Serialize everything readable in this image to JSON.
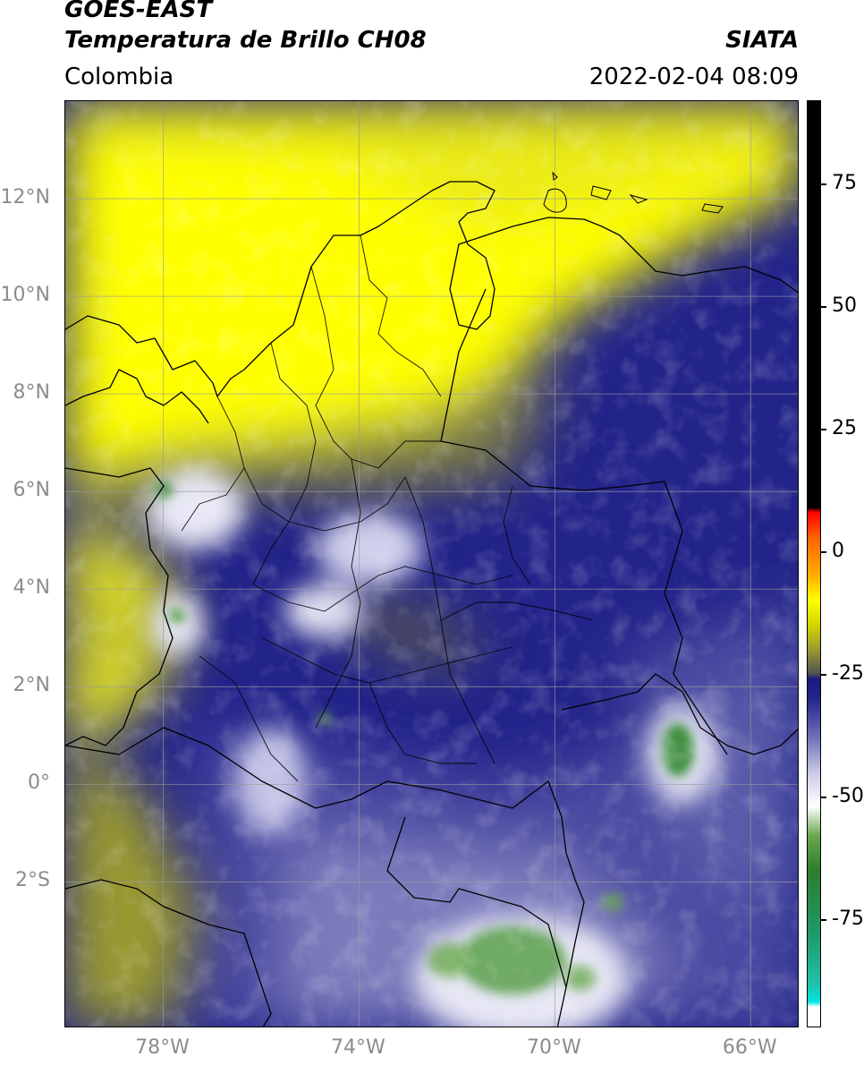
{
  "header": {
    "satellite": "GOES-EAST",
    "product": "Temperatura de Brillo CH08",
    "region": "Colombia",
    "source": "SIATA",
    "datetime": "2022-02-04 08:09"
  },
  "map": {
    "lat_range": [
      -5,
      14
    ],
    "lon_range": [
      -80,
      -65
    ],
    "lat_ticks": [
      "12°N",
      "10°N",
      "8°N",
      "6°N",
      "4°N",
      "2°N",
      "0°",
      "2°S"
    ],
    "lat_tick_values": [
      12,
      10,
      8,
      6,
      4,
      2,
      0,
      -2
    ],
    "lon_ticks": [
      "78°W",
      "74°W",
      "70°W",
      "66°W"
    ],
    "lon_tick_values": [
      -78,
      -74,
      -70,
      -66
    ],
    "grid": true
  },
  "colorbar": {
    "ticks": [
      "75",
      "50",
      "25",
      "0",
      "-25",
      "-50",
      "-75"
    ],
    "tick_values": [
      75,
      50,
      25,
      0,
      -25,
      -50,
      -75
    ],
    "range": [
      -97,
      92
    ],
    "stops": [
      {
        "v": -97,
        "c": "#ffffff"
      },
      {
        "v": -93,
        "c": "#ffffff"
      },
      {
        "v": -92,
        "c": "#00e5e5"
      },
      {
        "v": -88,
        "c": "#20c0a8"
      },
      {
        "v": -78,
        "c": "#1e9a6a"
      },
      {
        "v": -65,
        "c": "#2e7d2e"
      },
      {
        "v": -58,
        "c": "#6aa84f"
      },
      {
        "v": -52,
        "c": "#ffffff"
      },
      {
        "v": -45,
        "c": "#c8c8e6"
      },
      {
        "v": -38,
        "c": "#7070b8"
      },
      {
        "v": -30,
        "c": "#23248a"
      },
      {
        "v": -26,
        "c": "#1a1a80"
      },
      {
        "v": -25,
        "c": "#505050"
      },
      {
        "v": -20,
        "c": "#9a9a30"
      },
      {
        "v": -15,
        "c": "#d4d400"
      },
      {
        "v": -10,
        "c": "#ffff00"
      },
      {
        "v": -5,
        "c": "#ffb000"
      },
      {
        "v": 3,
        "c": "#ff6000"
      },
      {
        "v": 8,
        "c": "#ff0000"
      },
      {
        "v": 9,
        "c": "#000000"
      },
      {
        "v": 92,
        "c": "#000000"
      }
    ]
  }
}
